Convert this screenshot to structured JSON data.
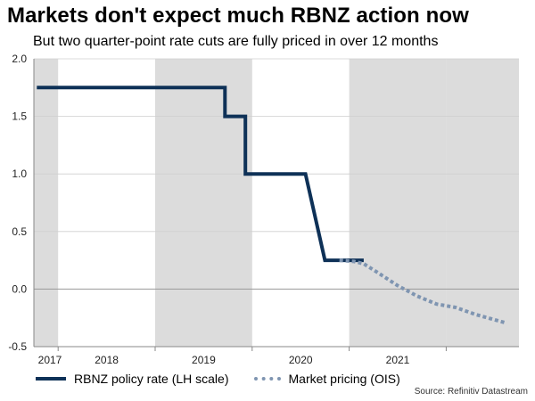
{
  "title": "Markets don't expect much RBNZ action now",
  "subtitle": "But two quarter-point rate cuts are fully priced in over 12 months",
  "source": "Source: Refinitiv Datastream",
  "colors": {
    "policy_rate": "#0e3157",
    "market_pricing": "#7f95b1",
    "shading": "#dcdcdc",
    "axis": "#888888"
  },
  "chart_data": {
    "type": "line",
    "title": "Markets don't expect much RBNZ action now",
    "xlabel": "",
    "ylabel": "",
    "xlim": [
      2016.75,
      2021.75
    ],
    "ylim": [
      -0.5,
      2.0
    ],
    "yticks": [
      "2.0",
      "1.5",
      "1.0",
      "0.5",
      "0.0",
      "-0.5"
    ],
    "ytick_values": [
      2.0,
      1.5,
      1.0,
      0.5,
      0.0,
      -0.5
    ],
    "xticks": [
      {
        "label": "2017",
        "value": 2017.0
      },
      {
        "label": "2018",
        "value": 2018.0
      },
      {
        "label": "2019",
        "value": 2019.0
      },
      {
        "label": "2020",
        "value": 2020.0
      },
      {
        "label": "2021",
        "value": 2021.0
      }
    ],
    "shaded_periods": [
      [
        2016.75,
        2017.0
      ],
      [
        2018.0,
        2019.0
      ],
      [
        2020.0,
        2021.0
      ],
      [
        2021.0,
        2021.75
      ]
    ],
    "legend_position": "bottom",
    "series": [
      {
        "name": "RBNZ policy rate (LH scale)",
        "style": "solid",
        "x": [
          2016.78,
          2018.35,
          2018.65,
          2018.72,
          2018.72,
          2018.93,
          2018.93,
          2019.47,
          2019.55,
          2019.75,
          2020.15
        ],
        "y": [
          1.75,
          1.75,
          1.75,
          1.75,
          1.5,
          1.5,
          1.0,
          1.0,
          1.0,
          0.25,
          0.25
        ]
      },
      {
        "name": "Market pricing (OIS)",
        "style": "dotted",
        "x": [
          2019.9,
          2020.05,
          2020.15,
          2020.3,
          2020.5,
          2020.7,
          2020.9,
          2021.1,
          2021.3,
          2021.6
        ],
        "y": [
          0.25,
          0.24,
          0.22,
          0.14,
          0.03,
          -0.06,
          -0.13,
          -0.16,
          -0.22,
          -0.29
        ]
      }
    ]
  },
  "legend": {
    "items": [
      {
        "label": "RBNZ policy rate (LH scale)"
      },
      {
        "label": "Market pricing (OIS)"
      }
    ]
  }
}
